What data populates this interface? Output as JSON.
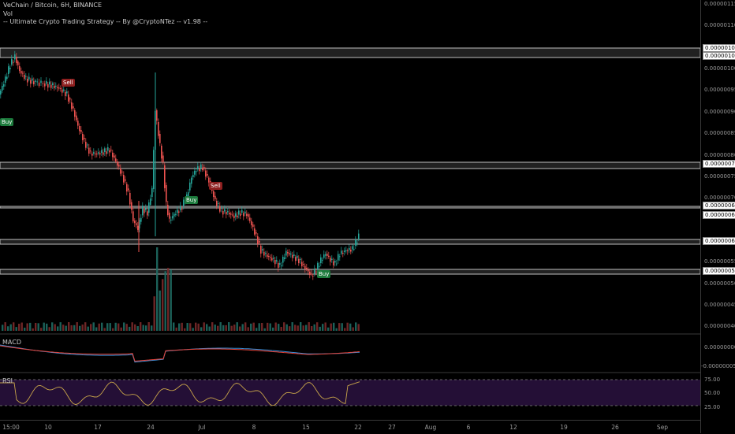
{
  "legend": {
    "symbol": "VeChain / Bitcoin, 6H, BINANCE",
    "vol": "Vol",
    "strategy": "-- Ultimate Crypto Trading Strategy -- By @CryptoNTez -- v1.98 --"
  },
  "panes": {
    "macd": "MACD",
    "rsi": "RSI"
  },
  "price_axis": [
    "0.00000115",
    "0.00000110",
    "0.00000105",
    "0.00000100",
    "0.00000095",
    "0.00000090",
    "0.00000085",
    "0.00000080",
    "0.00000075",
    "0.00000070",
    "0.00000065",
    "0.00000060",
    "0.00000055",
    "0.00000050",
    "0.00000045",
    "0.00000040"
  ],
  "price_boxes": [
    "0.00000105",
    "0.00000103",
    "0.00000078",
    "0.00000068",
    "0.00000067",
    "0.00000060",
    "0.00000053"
  ],
  "macd_axis": [
    "0.00000000",
    "-0.00000005"
  ],
  "rsi_axis": [
    "75.00",
    "50.00",
    "25.00"
  ],
  "time_axis": [
    "15:00",
    "10",
    "17",
    "24",
    "Jul",
    "8",
    "15",
    "22",
    "27",
    "Aug",
    "6",
    "12",
    "19",
    "26",
    "Sep"
  ],
  "signals": [
    "Buy",
    "Sell",
    "Buy",
    "Sell",
    "Buy"
  ],
  "colors": {
    "up": "#26a69a",
    "down": "#ef5350",
    "rsi_line": "#c8a54a",
    "rsi_band": "#2a1240",
    "macd": "#3b8fd9",
    "signal": "#e8443a"
  }
}
